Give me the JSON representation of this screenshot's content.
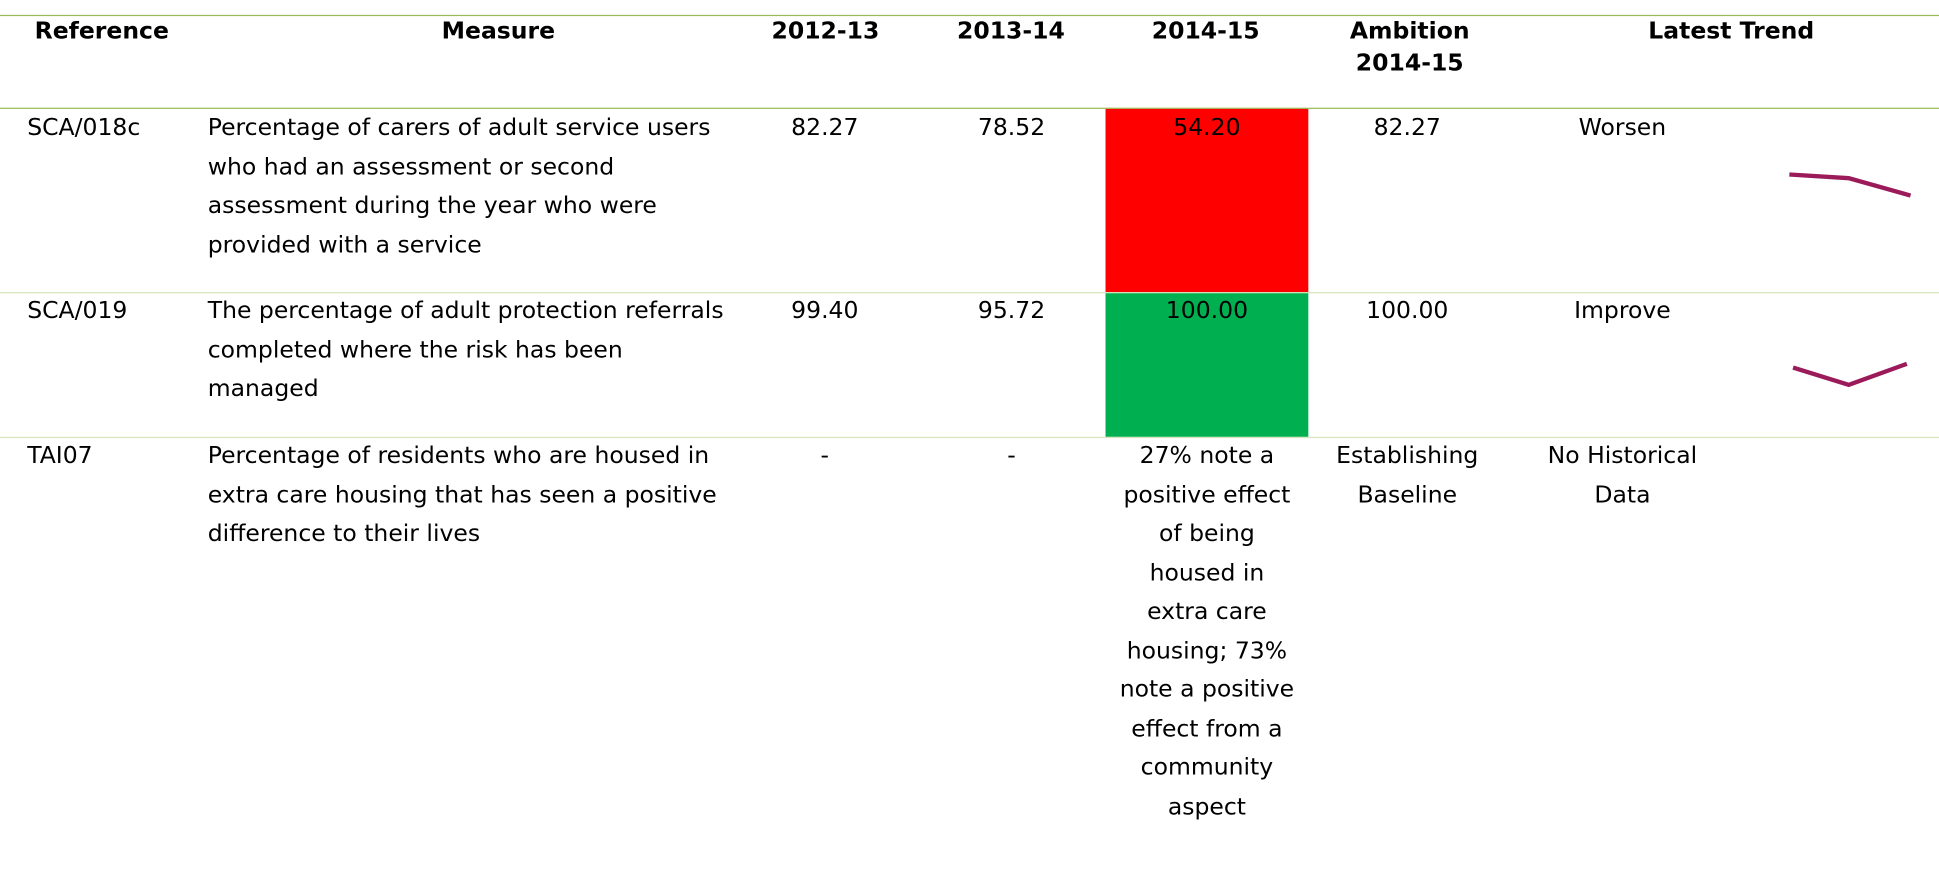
{
  "table": {
    "header": [
      "Reference",
      "Measure",
      "2012-13",
      "2013-14",
      "2014-15",
      "Ambition 2014-15",
      "Latest Trend"
    ],
    "rows": [
      {
        "reference": "SCA/018c",
        "measure": "Percentage of carers of adult service users who had an assessment or second assessment during the year who were provided with a service",
        "y2012_13": "82.27",
        "y2013_14": "78.52",
        "y2014_15": "54.20",
        "color": "#ff0000",
        "ambition": "82.27",
        "trend": "Worsen"
      },
      {
        "reference": "SCA/019",
        "measure": "The percentage of adult protection referrals completed where the risk has been managed",
        "y2012_13": "99.40",
        "y2013_14": "95.72",
        "y2014_15": "100.00",
        "color": "#00b050",
        "ambition": "100.00",
        "trend": "Improve"
      },
      {
        "reference": "TAI07",
        "measure": "Percentage of residents who are housed in extra care housing that has seen a positive difference to their lives",
        "y2012_13": "-",
        "y2013_14": "-",
        "y2014_15": "27% note a positive effect of being housed in extra care housing; 73% note a positive effect from a community aspect",
        "ambition": "Establishing Baseline",
        "trend": "No Historical Data"
      }
    ]
  }
}
